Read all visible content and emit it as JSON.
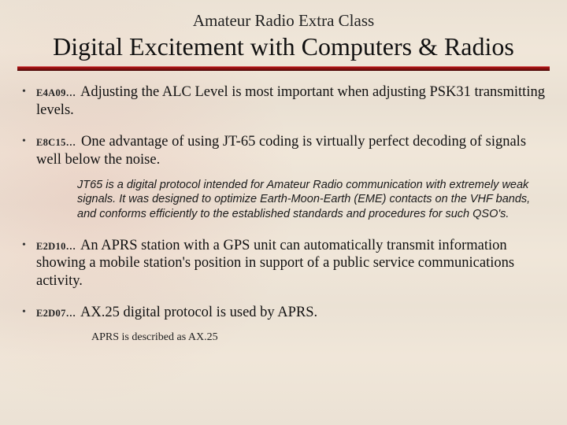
{
  "colors": {
    "background": "#f5ece0",
    "rule_top": "#b01515",
    "rule_bottom": "#6e0b0b",
    "text": "#111111",
    "code_text": "#222222"
  },
  "typography": {
    "supertitle_fontsize_pt": 16,
    "title_fontsize_pt": 24,
    "body_fontsize_pt": 14,
    "code_fontsize_pt": 9,
    "note_fontsize_pt": 11,
    "note_font_family": "Verdana",
    "body_font_family": "Times New Roman"
  },
  "header": {
    "supertitle": "Amateur Radio Extra Class",
    "title": "Digital Excitement with Computers & Radios"
  },
  "bullets": [
    {
      "code": "E4A09…",
      "text": "Adjusting the ALC Level is most important when adjusting PSK31 transmitting levels."
    },
    {
      "code": "E8C15…",
      "text": "One advantage of using JT-65 coding is virtually perfect decoding of signals well below the noise."
    },
    {
      "code": "E2D10…",
      "text": "An APRS station with a GPS unit can automatically transmit information showing a mobile station's position in support of a public service communications activity."
    },
    {
      "code": "E2D07…",
      "text": "AX.25 digital protocol is used by APRS."
    }
  ],
  "notes": {
    "jt65": "JT65 is a digital protocol intended for Amateur Radio communication with extremely weak signals. It was designed to optimize Earth-Moon-Earth (EME) contacts on the VHF bands, and conforms efficiently to the established standards and procedures for such QSO's.",
    "aprs": "APRS is described as AX.25"
  }
}
